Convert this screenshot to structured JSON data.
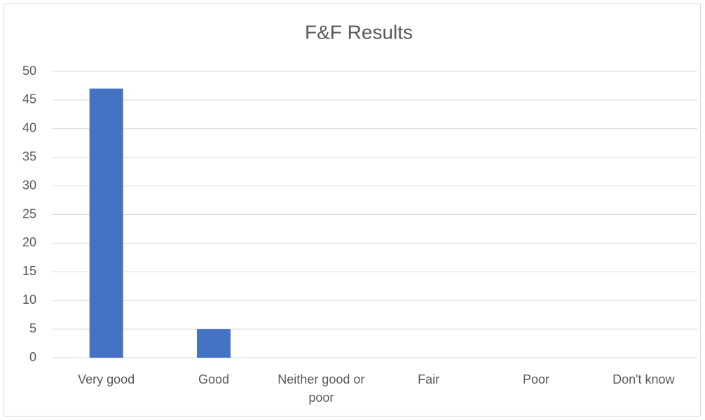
{
  "chart_data": {
    "type": "bar",
    "title": "F&F Results",
    "categories": [
      "Very good",
      "Good",
      "Neither good or poor",
      "Fair",
      "Poor",
      "Don't know"
    ],
    "values": [
      47,
      5,
      0,
      0,
      0,
      0
    ],
    "color": "#4472c4",
    "ylim": [
      0,
      50
    ],
    "yticks": [
      0,
      5,
      10,
      15,
      20,
      25,
      30,
      35,
      40,
      45,
      50
    ],
    "grid": true
  }
}
